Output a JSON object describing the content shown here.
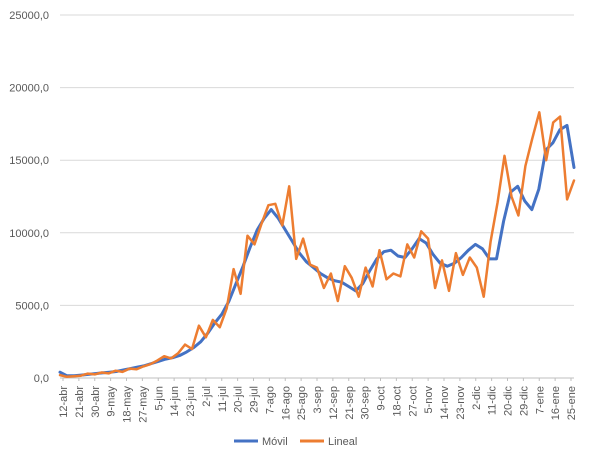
{
  "chart_data": {
    "type": "line",
    "x_tick_labels": [
      "12-abr",
      "21-abr",
      "30-abr",
      "9-may",
      "18-may",
      "27-may",
      "5-jun",
      "14-jun",
      "23-jun",
      "2-jul",
      "11-jul",
      "20-jul",
      "29-jul",
      "7-ago",
      "16-ago",
      "25-ago",
      "3-sep",
      "12-sep",
      "21-sep",
      "30-sep",
      "9-oct",
      "18-oct",
      "27-oct",
      "5-nov",
      "14-nov",
      "23-nov",
      "2-dic",
      "11-dic",
      "20-dic",
      "29-dic",
      "7-ene",
      "16-ene",
      "25-ene"
    ],
    "y_tick_labels": [
      "0,0",
      "5000,0",
      "10000,0",
      "15000,0",
      "20000,0",
      "25000,0"
    ],
    "ylim": [
      0,
      25000
    ],
    "gridlines": true,
    "legend_position": "bottom",
    "series": [
      {
        "name": "Móvil",
        "color": "#4472C4",
        "values": [
          400,
          150,
          150,
          200,
          250,
          300,
          350,
          400,
          450,
          550,
          650,
          750,
          850,
          1000,
          1150,
          1300,
          1400,
          1550,
          1800,
          2100,
          2500,
          3100,
          3800,
          4400,
          5300,
          6500,
          7700,
          9000,
          10200,
          11000,
          11600,
          11000,
          10200,
          9400,
          8600,
          8000,
          7600,
          7200,
          6900,
          6700,
          6600,
          6300,
          6000,
          6500,
          7400,
          8200,
          8700,
          8800,
          8400,
          8300,
          8900,
          9600,
          9300,
          8500,
          7900,
          7700,
          7900,
          8300,
          8800,
          9200,
          8900,
          8200,
          8200,
          10800,
          12800,
          13200,
          12200,
          11600,
          13000,
          15700,
          16200,
          17100,
          17400,
          14500
        ]
      },
      {
        "name": "Lineal",
        "color": "#ED7D31",
        "values": [
          200,
          80,
          120,
          160,
          300,
          250,
          380,
          320,
          500,
          420,
          650,
          600,
          800,
          950,
          1200,
          1500,
          1350,
          1700,
          2300,
          2000,
          3600,
          2800,
          4000,
          3500,
          4800,
          7500,
          5800,
          9800,
          9200,
          10600,
          11900,
          12000,
          10500,
          13200,
          8200,
          9600,
          7800,
          7600,
          6200,
          7200,
          5300,
          7700,
          6900,
          5600,
          7600,
          6300,
          8800,
          6800,
          7200,
          7000,
          9200,
          8300,
          10100,
          9600,
          6200,
          8100,
          6000,
          8600,
          7100,
          8300,
          7600,
          5600,
          9400,
          12100,
          15300,
          12500,
          11200,
          14600,
          16500,
          18300,
          15000,
          17600,
          18000,
          12300,
          13600
        ]
      }
    ]
  }
}
